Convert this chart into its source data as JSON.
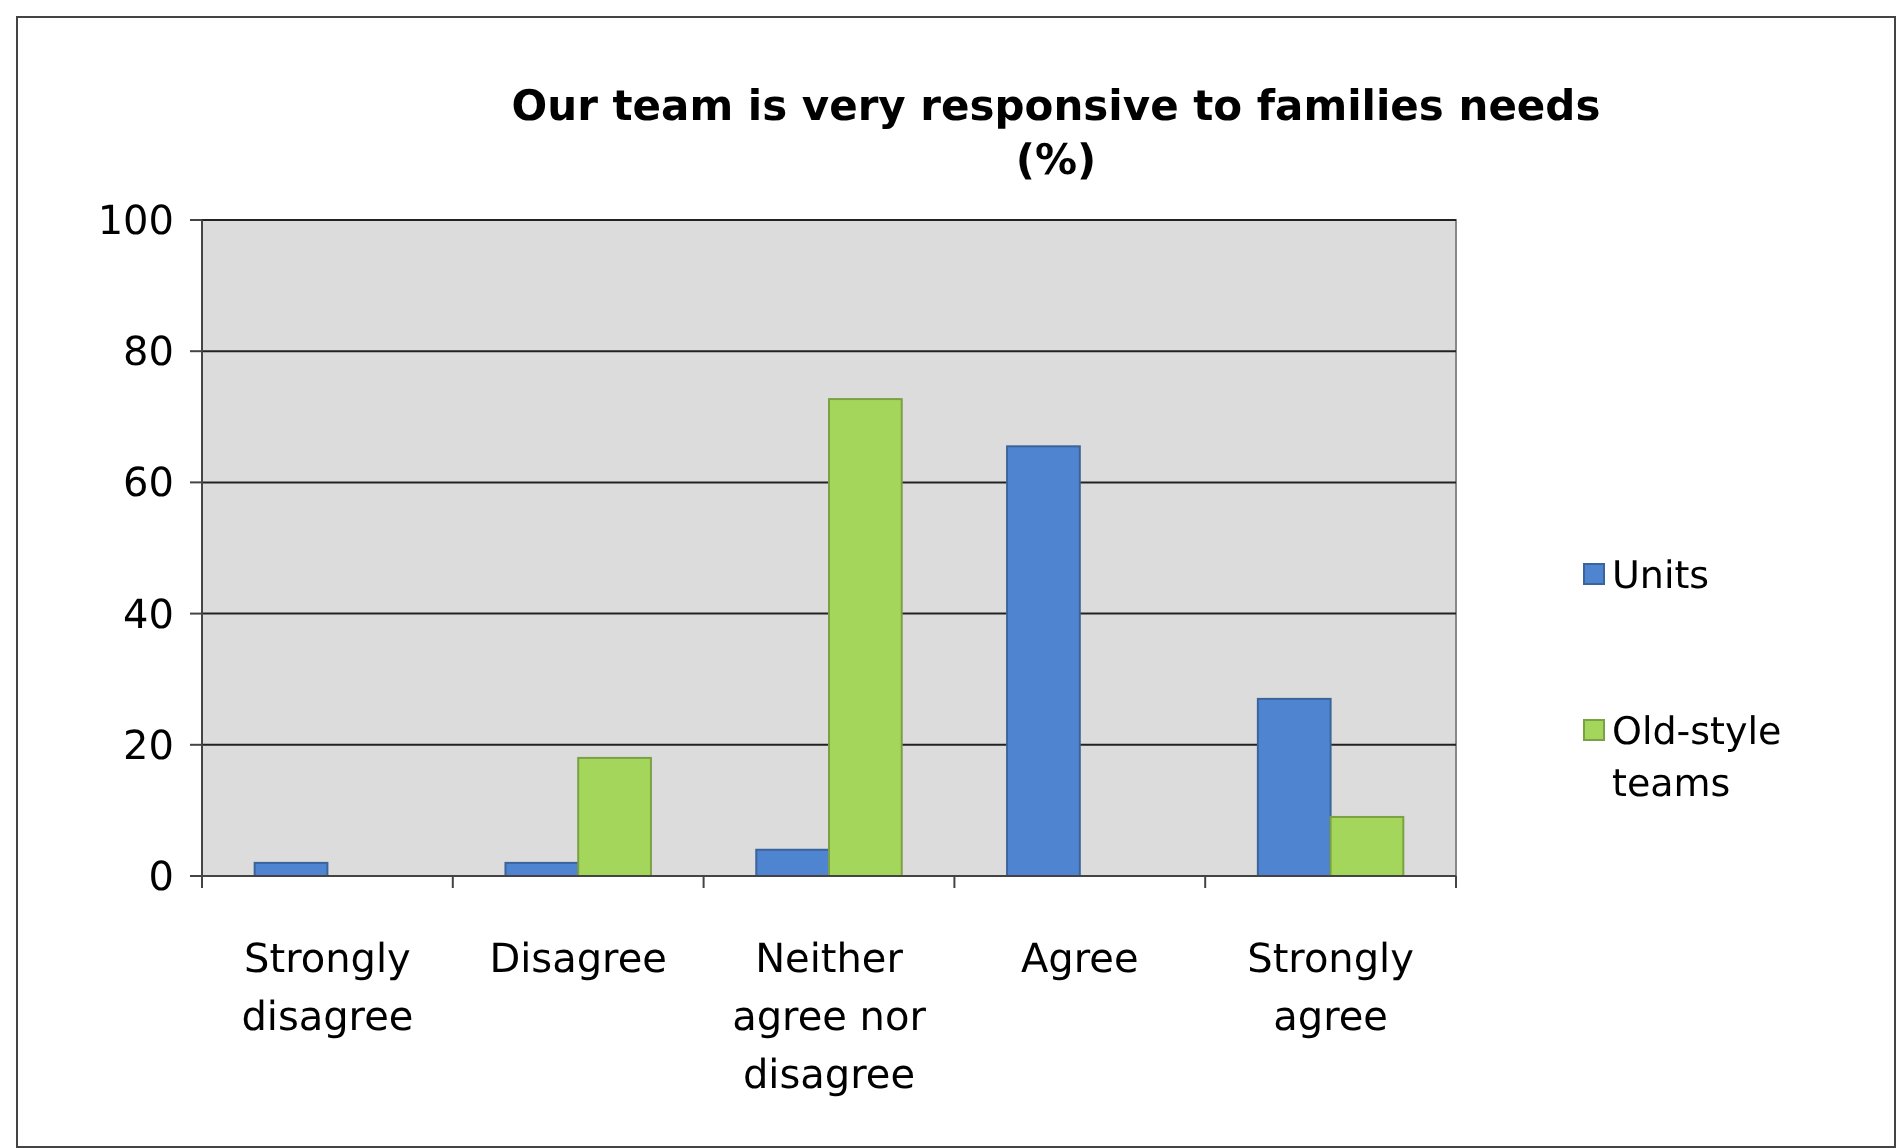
{
  "chart_data": {
    "type": "bar",
    "title": "Our team is very responsive to families needs (%)",
    "categories": [
      "Strongly disagree",
      "Disagree",
      "Neither agree nor disagree",
      "Agree",
      "Strongly agree"
    ],
    "series": [
      {
        "name": "Units",
        "color": "#4f85d0",
        "values": [
          2,
          2,
          4,
          65.5,
          27
        ]
      },
      {
        "name": "Old-style teams",
        "color": "#a4d65c",
        "values": [
          0,
          18,
          72.7,
          0,
          9
        ]
      }
    ],
    "ylim": [
      0,
      100
    ],
    "yticks": [
      0,
      20,
      40,
      60,
      80,
      100
    ],
    "grid": "y",
    "legend": "right"
  }
}
